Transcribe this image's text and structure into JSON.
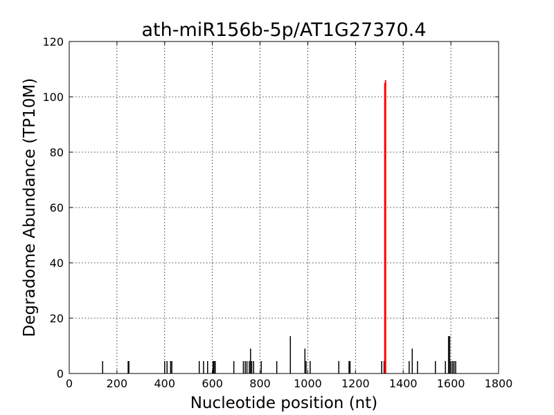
{
  "chart_data": {
    "type": "bar",
    "title": "ath-miR156b-5p/AT1G27370.4",
    "xlabel": "Nucleotide position (nt)",
    "ylabel": "Degradome Abundance (TP10M)",
    "xlim": [
      0,
      1800
    ],
    "ylim": [
      0,
      120
    ],
    "xticks": [
      0,
      200,
      400,
      600,
      800,
      1000,
      1200,
      1400,
      1600,
      1800
    ],
    "yticks": [
      0,
      20,
      40,
      60,
      80,
      100,
      120
    ],
    "grid": true,
    "colors": {
      "background": "#ffffff",
      "bars": "#000000",
      "highlight": "#ff0000"
    },
    "series": [
      {
        "values": [
          [
            140,
            4.5
          ],
          [
            247,
            4.5
          ],
          [
            250,
            4.5
          ],
          [
            400,
            4.5
          ],
          [
            410,
            4.5
          ],
          [
            425,
            4.5
          ],
          [
            430,
            4.5
          ],
          [
            545,
            4.5
          ],
          [
            563,
            4.5
          ],
          [
            580,
            4.5
          ],
          [
            603,
            4.5
          ],
          [
            607,
            4.5
          ],
          [
            612,
            4.5
          ],
          [
            690,
            4.5
          ],
          [
            730,
            4.5
          ],
          [
            738,
            4.5
          ],
          [
            745,
            4.5
          ],
          [
            755,
            4.5
          ],
          [
            760,
            9.0
          ],
          [
            765,
            4.5
          ],
          [
            773,
            4.5
          ],
          [
            805,
            4.5
          ],
          [
            870,
            4.5
          ],
          [
            927,
            13.5
          ],
          [
            988,
            9.0
          ],
          [
            993,
            4.5
          ],
          [
            1010,
            4.5
          ],
          [
            1130,
            4.5
          ],
          [
            1173,
            4.5
          ],
          [
            1177,
            4.5
          ],
          [
            1310,
            4.5
          ],
          [
            1320,
            4.5
          ],
          [
            1425,
            4.5
          ],
          [
            1438,
            9.0
          ],
          [
            1460,
            4.5
          ],
          [
            1535,
            4.5
          ],
          [
            1577,
            4.5
          ],
          [
            1590,
            13.5
          ],
          [
            1595,
            13.5
          ],
          [
            1600,
            4.5
          ],
          [
            1607,
            4.5
          ],
          [
            1613,
            4.5
          ],
          [
            1620,
            4.5
          ]
        ]
      },
      {
        "values": [
          [
            1323,
            105
          ],
          [
            1326,
            106
          ]
        ]
      }
    ]
  }
}
